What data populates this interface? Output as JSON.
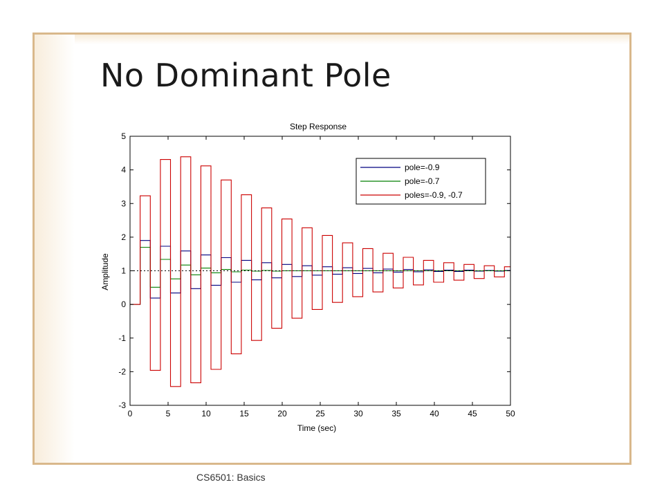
{
  "slide": {
    "title": "No Dominant Pole",
    "footer": "CS6501: Basics"
  },
  "chart_data": {
    "type": "line",
    "title": "Step Response",
    "xlabel": "Time (sec)",
    "ylabel": "Amplitude",
    "xlim": [
      0,
      50
    ],
    "ylim": [
      -3,
      5
    ],
    "xticks": [
      0,
      5,
      10,
      15,
      20,
      25,
      30,
      35,
      40,
      45,
      50
    ],
    "yticks": [
      -3,
      -2,
      -1,
      0,
      1,
      2,
      3,
      4,
      5
    ],
    "legend_position": "top-right",
    "reference_line": {
      "y": 1,
      "style": "dotted",
      "color": "#000000"
    },
    "sample_time": 1.33,
    "series": [
      {
        "name": "pole=-0.9",
        "color": "#00007f",
        "style": "zoh",
        "values": [
          0,
          1.9,
          0.19,
          1.73,
          0.34,
          1.59,
          0.47,
          1.47,
          0.57,
          1.39,
          0.66,
          1.31,
          0.73,
          1.24,
          0.79,
          1.19,
          0.83,
          1.15,
          0.87,
          1.12,
          0.9,
          1.09,
          0.92,
          1.07,
          0.94,
          1.05,
          0.96,
          1.04,
          0.97,
          1.03,
          0.98,
          1.02,
          0.98,
          1.02,
          0.99,
          1.01,
          0.99,
          1.01
        ]
      },
      {
        "name": "pole=-0.7",
        "color": "#007f00",
        "style": "zoh",
        "values": [
          0,
          1.7,
          0.51,
          1.34,
          0.76,
          1.17,
          0.88,
          1.08,
          0.94,
          1.04,
          0.97,
          1.02,
          0.99,
          1.01,
          0.99,
          1.0,
          1.0,
          1.0,
          1.0,
          1.0,
          1.0,
          1.0,
          1.0,
          1.0,
          1.0,
          1.0,
          1.0,
          1.0,
          1.0,
          1.0,
          1.0,
          1.0,
          1.0,
          1.0,
          1.0,
          1.0,
          1.0,
          1.0
        ]
      },
      {
        "name": "poles=-0.9, -0.7",
        "color": "#cc0000",
        "style": "zoh",
        "values": [
          0,
          3.23,
          -1.96,
          4.31,
          -2.44,
          4.39,
          -2.33,
          4.12,
          -1.93,
          3.7,
          -1.47,
          3.26,
          -1.07,
          2.87,
          -0.71,
          2.54,
          -0.41,
          2.28,
          -0.15,
          2.05,
          0.06,
          1.83,
          0.23,
          1.66,
          0.37,
          1.52,
          0.49,
          1.4,
          0.58,
          1.31,
          0.66,
          1.24,
          0.72,
          1.19,
          0.77,
          1.15,
          0.82,
          1.12
        ]
      }
    ]
  }
}
